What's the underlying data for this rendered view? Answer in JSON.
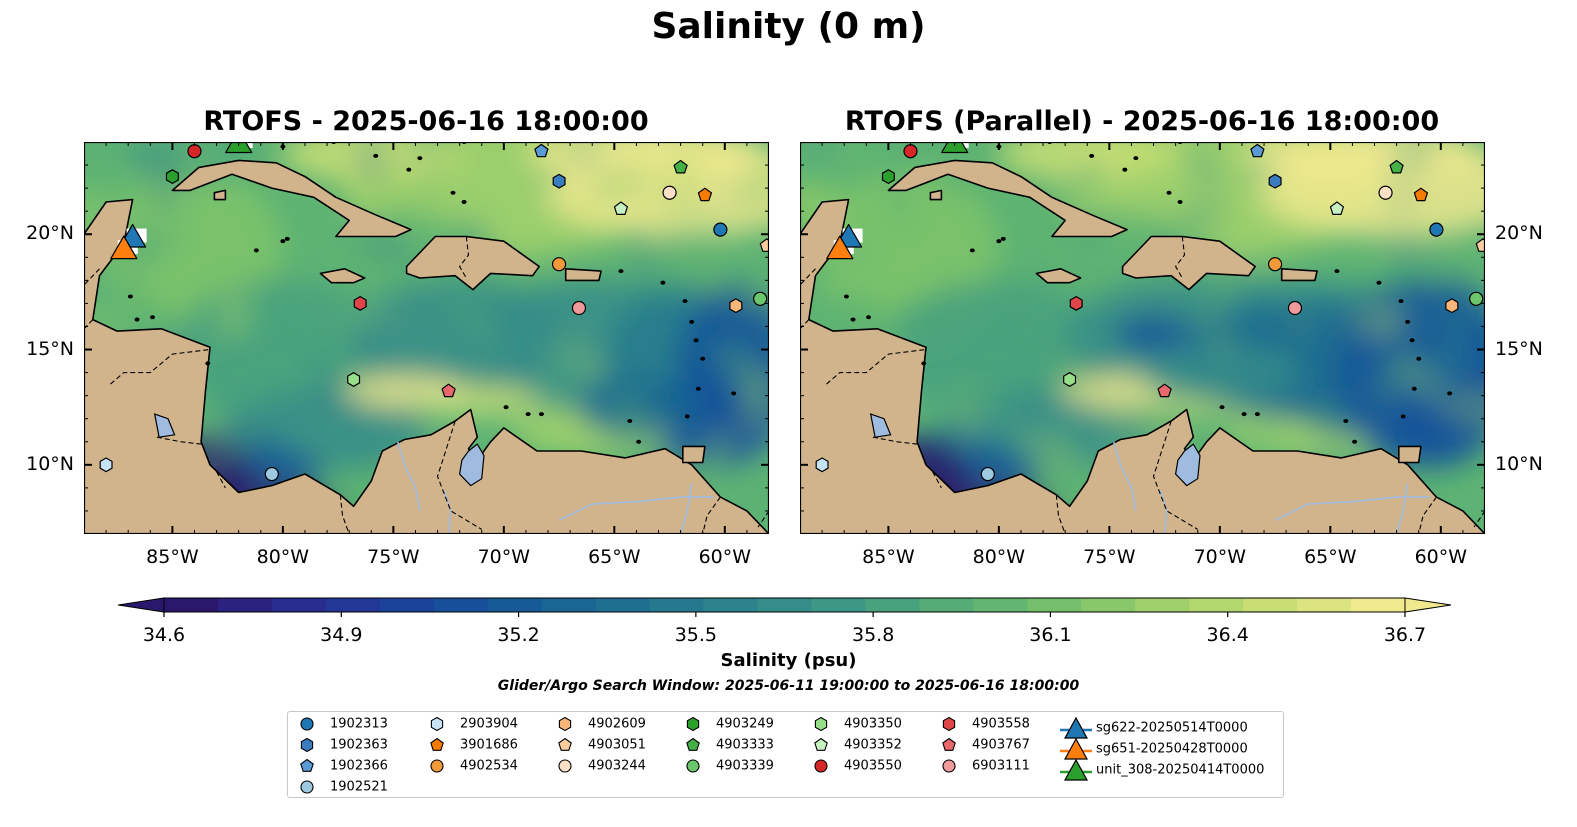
{
  "title": "Salinity (0 m)",
  "panels": [
    {
      "title": "RTOFS - 2025-06-16 18:00:00"
    },
    {
      "title": "RTOFS (Parallel) - 2025-06-16 18:00:00"
    }
  ],
  "map": {
    "lon_range": [
      -89,
      -58
    ],
    "lat_range": [
      7,
      24
    ],
    "lon_ticks": [
      "85°W",
      "80°W",
      "75°W",
      "70°W",
      "65°W",
      "60°W"
    ],
    "lat_ticks": [
      "20°N",
      "15°N",
      "10°N"
    ],
    "land_color": "#d2b48c",
    "lake_color": "#9fbbe0"
  },
  "colorbar": {
    "label": "Salinity (psu)",
    "ticks": [
      "34.6",
      "34.9",
      "35.2",
      "35.5",
      "35.8",
      "36.1",
      "36.4",
      "36.7"
    ],
    "range": [
      34.6,
      36.7
    ],
    "colormap": "haline",
    "colors": [
      "#29186b",
      "#2a2a8e",
      "#1e3f9a",
      "#15559a",
      "#1a6892",
      "#277a8e",
      "#358c89",
      "#46a07f",
      "#5db373",
      "#7ec46a",
      "#a6d36b",
      "#cbdf76",
      "#f0e98e"
    ]
  },
  "search_window": "Glider/Argo Search Window: 2025-06-11 19:00:00 to 2025-06-16 18:00:00",
  "legend": {
    "columns": [
      [
        {
          "label": "1902313",
          "marker": "circle",
          "color": "#1f77b4"
        },
        {
          "label": "1902363",
          "marker": "hexagon",
          "color": "#3a7cc0"
        },
        {
          "label": "1902366",
          "marker": "pentagon",
          "color": "#5a9bd5"
        },
        {
          "label": "1902521",
          "marker": "circle",
          "color": "#9ecae1"
        }
      ],
      [
        {
          "label": "2903904",
          "marker": "hexagon",
          "color": "#c6e2f5"
        },
        {
          "label": "3901686",
          "marker": "pentagon",
          "color": "#f57c00"
        },
        {
          "label": "4902534",
          "marker": "circle",
          "color": "#f29a3a"
        }
      ],
      [
        {
          "label": "4902609",
          "marker": "hexagon",
          "color": "#f9b67a"
        },
        {
          "label": "4903051",
          "marker": "pentagon",
          "color": "#fbcc9e"
        },
        {
          "label": "4903244",
          "marker": "circle",
          "color": "#fde0c5"
        }
      ],
      [
        {
          "label": "4903249",
          "marker": "hexagon",
          "color": "#2ca02c"
        },
        {
          "label": "4903333",
          "marker": "pentagon",
          "color": "#44b045"
        },
        {
          "label": "4903339",
          "marker": "circle",
          "color": "#6cc76c"
        }
      ],
      [
        {
          "label": "4903350",
          "marker": "hexagon",
          "color": "#98df8a"
        },
        {
          "label": "4903352",
          "marker": "pentagon",
          "color": "#c7f0c0"
        },
        {
          "label": "4903550",
          "marker": "circle",
          "color": "#d62728"
        }
      ],
      [
        {
          "label": "4903558",
          "marker": "hexagon",
          "color": "#e0454a"
        },
        {
          "label": "4903767",
          "marker": "pentagon",
          "color": "#e8686c"
        },
        {
          "label": "6903111",
          "marker": "circle",
          "color": "#f19a9b"
        }
      ],
      [
        {
          "label": "sg622-20250514T0000",
          "marker": "triangle",
          "color": "#1f77b4"
        },
        {
          "label": "sg651-20250428T0000",
          "marker": "triangle",
          "color": "#ff7f0e"
        },
        {
          "label": "unit_308-20250414T0000",
          "marker": "triangle",
          "color": "#2ca02c"
        }
      ]
    ]
  },
  "observations": [
    {
      "id": "1902313",
      "lon": -60.2,
      "lat": 20.2,
      "marker": "circle",
      "color": "#1f77b4"
    },
    {
      "id": "1902363",
      "lon": -67.5,
      "lat": 22.3,
      "marker": "hexagon",
      "color": "#3a7cc0"
    },
    {
      "id": "1902366",
      "lon": -68.3,
      "lat": 23.6,
      "marker": "pentagon",
      "color": "#5a9bd5"
    },
    {
      "id": "1902521",
      "lon": -80.5,
      "lat": 9.6,
      "marker": "circle",
      "color": "#9ecae1"
    },
    {
      "id": "2903904",
      "lon": -88.0,
      "lat": 10.0,
      "marker": "hexagon",
      "color": "#c6e2f5"
    },
    {
      "id": "3901686",
      "lon": -60.9,
      "lat": 21.7,
      "marker": "pentagon",
      "color": "#f57c00"
    },
    {
      "id": "4902534",
      "lon": -67.5,
      "lat": 18.7,
      "marker": "circle",
      "color": "#f29a3a"
    },
    {
      "id": "4902609",
      "lon": -59.5,
      "lat": 16.9,
      "marker": "hexagon",
      "color": "#f9b67a"
    },
    {
      "id": "4903051",
      "lon": -58.1,
      "lat": 19.5,
      "marker": "pentagon",
      "color": "#fbcc9e"
    },
    {
      "id": "4903244",
      "lon": -62.5,
      "lat": 21.8,
      "marker": "circle",
      "color": "#fde0c5"
    },
    {
      "id": "4903249",
      "lon": -85.0,
      "lat": 22.5,
      "marker": "hexagon",
      "color": "#2ca02c"
    },
    {
      "id": "4903333",
      "lon": -62.0,
      "lat": 22.9,
      "marker": "pentagon",
      "color": "#44b045"
    },
    {
      "id": "4903339",
      "lon": -58.4,
      "lat": 17.2,
      "marker": "circle",
      "color": "#6cc76c"
    },
    {
      "id": "4903350",
      "lon": -76.8,
      "lat": 13.7,
      "marker": "hexagon",
      "color": "#98df8a"
    },
    {
      "id": "4903352",
      "lon": -64.7,
      "lat": 21.1,
      "marker": "pentagon",
      "color": "#c7f0c0"
    },
    {
      "id": "4903550",
      "lon": -84.0,
      "lat": 23.6,
      "marker": "circle",
      "color": "#d62728"
    },
    {
      "id": "4903558",
      "lon": -76.5,
      "lat": 17.0,
      "marker": "hexagon",
      "color": "#e0454a"
    },
    {
      "id": "4903767",
      "lon": -72.5,
      "lat": 13.2,
      "marker": "pentagon",
      "color": "#e8686c"
    },
    {
      "id": "6903111",
      "lon": -66.6,
      "lat": 16.8,
      "marker": "circle",
      "color": "#f19a9b"
    }
  ],
  "gliders": [
    {
      "id": "sg622-20250514T0000",
      "lon": -86.8,
      "lat": 19.9,
      "color": "#1f77b4"
    },
    {
      "id": "sg651-20250428T0000",
      "lon": -87.2,
      "lat": 19.4,
      "color": "#ff7f0e"
    },
    {
      "id": "unit_308-20250414T0000",
      "lon": -82.0,
      "lat": 24.0,
      "color": "#2ca02c"
    }
  ]
}
